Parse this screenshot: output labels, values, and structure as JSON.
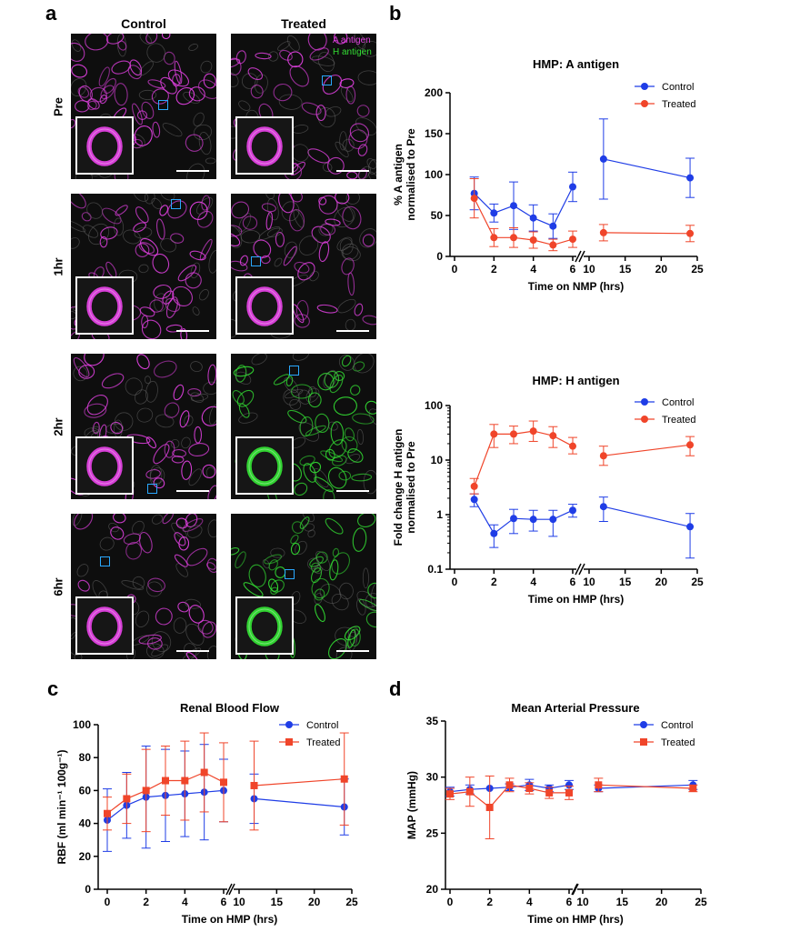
{
  "panel_a": {
    "label": "a",
    "columns": [
      "Control",
      "Treated"
    ],
    "rows": [
      "Pre",
      "1hr",
      "2hr",
      "6hr"
    ],
    "legend": {
      "a_antigen": "A antigen",
      "h_antigen": "H antigen"
    },
    "colors": {
      "a_antigen": "#e040e0",
      "h_antigen": "#33dd33",
      "roi": "#2aa8ff"
    },
    "stain": [
      [
        "magenta",
        "magenta"
      ],
      [
        "magenta",
        "magenta"
      ],
      [
        "magenta",
        "green"
      ],
      [
        "magenta",
        "green"
      ]
    ]
  },
  "panel_labels": {
    "b": "b",
    "c": "c",
    "d": "d"
  },
  "colors": {
    "control": "#1f3de6",
    "treated": "#f0452a"
  },
  "chart_data": [
    {
      "id": "b_top",
      "type": "line",
      "title": "HMP: A antigen",
      "xlabel": "Time on NMP (hrs)",
      "ylabel": [
        "% A antigen",
        "normalised to Pre"
      ],
      "ylim": [
        0,
        200
      ],
      "yticks": [
        0,
        50,
        100,
        150,
        200
      ],
      "xticks_left": [
        0,
        2,
        4,
        6
      ],
      "xticks_right": [
        10,
        15,
        20,
        25
      ],
      "legend_position": "top-right",
      "series": [
        {
          "name": "Control",
          "x": [
            1,
            2,
            3,
            4,
            5,
            6,
            12,
            24
          ],
          "y": [
            77,
            53,
            62,
            47,
            37,
            85,
            119,
            96
          ],
          "err": [
            20,
            11,
            29,
            16,
            15,
            18,
            49,
            24
          ]
        },
        {
          "name": "Treated",
          "x": [
            1,
            2,
            3,
            4,
            5,
            6,
            12,
            24
          ],
          "y": [
            71,
            23,
            23,
            20,
            14,
            21,
            29,
            28
          ],
          "err": [
            24,
            11,
            12,
            10,
            7,
            10,
            10,
            10
          ]
        }
      ]
    },
    {
      "id": "b_bottom",
      "type": "line",
      "scale": "log",
      "title": "HMP: H antigen",
      "xlabel": "Time on HMP (hrs)",
      "ylabel": [
        "Fold change H antigen",
        "normalised to Pre"
      ],
      "ylim": [
        0.1,
        100
      ],
      "yticks": [
        0.1,
        1,
        10,
        100
      ],
      "ytick_labels": [
        "0.1",
        "1",
        "10",
        "100"
      ],
      "xticks_left": [
        0,
        2,
        4,
        6
      ],
      "xticks_right": [
        10,
        15,
        20,
        25
      ],
      "legend_position": "top-right",
      "series": [
        {
          "name": "Control",
          "x": [
            1,
            2,
            3,
            4,
            5,
            6,
            12,
            24
          ],
          "y": [
            1.9,
            0.45,
            0.85,
            0.82,
            0.82,
            1.2,
            1.4,
            0.6
          ],
          "lo": [
            1.4,
            0.25,
            0.45,
            0.5,
            0.4,
            0.9,
            0.75,
            0.16
          ],
          "hi": [
            2.4,
            0.65,
            1.25,
            1.2,
            1.2,
            1.55,
            2.1,
            1.05
          ]
        },
        {
          "name": "Treated",
          "x": [
            1,
            2,
            3,
            4,
            5,
            6,
            12,
            24
          ],
          "y": [
            3.3,
            30,
            30,
            34,
            28,
            18,
            12,
            19
          ],
          "lo": [
            2.4,
            17,
            20,
            22,
            17,
            13,
            8,
            12
          ],
          "hi": [
            4.6,
            45,
            42,
            52,
            41,
            26,
            18,
            27
          ]
        }
      ]
    },
    {
      "id": "c",
      "type": "line",
      "title": "Renal Blood Flow",
      "xlabel": "Time on HMP (hrs)",
      "ylabel": "RBF (ml min⁻¹ 100g⁻¹)",
      "ylim": [
        0,
        100
      ],
      "yticks": [
        0,
        20,
        40,
        60,
        80,
        100
      ],
      "xticks_left": [
        0,
        2,
        4,
        6
      ],
      "xticks_right": [
        10,
        15,
        20,
        25
      ],
      "legend_position": "top-right",
      "series": [
        {
          "name": "Control",
          "marker": "circle",
          "x": [
            0,
            1,
            2,
            3,
            4,
            5,
            6,
            12,
            24
          ],
          "y": [
            42,
            51,
            56,
            57,
            58,
            59,
            60,
            55,
            50
          ],
          "err": [
            19,
            20,
            31,
            28,
            26,
            29,
            19,
            15,
            17
          ]
        },
        {
          "name": "Treated",
          "marker": "square",
          "x": [
            0,
            1,
            2,
            3,
            4,
            5,
            6,
            12,
            24
          ],
          "y": [
            46,
            55,
            60,
            66,
            66,
            71,
            65,
            63,
            67
          ],
          "err": [
            10,
            15,
            25,
            21,
            24,
            24,
            24,
            27,
            28
          ]
        }
      ]
    },
    {
      "id": "d",
      "type": "line",
      "title": "Mean Arterial Pressure",
      "xlabel": "Time on HMP (hrs)",
      "ylabel": "MAP (mmHg)",
      "ylim": [
        20,
        35
      ],
      "yticks": [
        20,
        25,
        30,
        35
      ],
      "xticks_left": [
        0,
        2,
        4,
        6
      ],
      "xticks_right": [
        10,
        15,
        20,
        25
      ],
      "legend_position": "top-right",
      "series": [
        {
          "name": "Control",
          "marker": "circle",
          "x": [
            0,
            1,
            2,
            3,
            4,
            5,
            6,
            12,
            24
          ],
          "y": [
            28.7,
            28.9,
            29.0,
            29.1,
            29.3,
            29.0,
            29.3,
            29.0,
            29.3
          ],
          "err": [
            0.4,
            0.4,
            0,
            0.3,
            0.5,
            0.3,
            0.4,
            0.3,
            0.4
          ]
        },
        {
          "name": "Treated",
          "marker": "square",
          "x": [
            0,
            1,
            2,
            3,
            4,
            5,
            6,
            12,
            24
          ],
          "y": [
            28.5,
            28.7,
            27.3,
            29.3,
            29.0,
            28.6,
            28.6,
            29.3,
            29.0
          ],
          "err": [
            0.5,
            1.3,
            2.8,
            0.6,
            0.5,
            0.5,
            0.6,
            0.6,
            0.3
          ]
        }
      ]
    }
  ]
}
